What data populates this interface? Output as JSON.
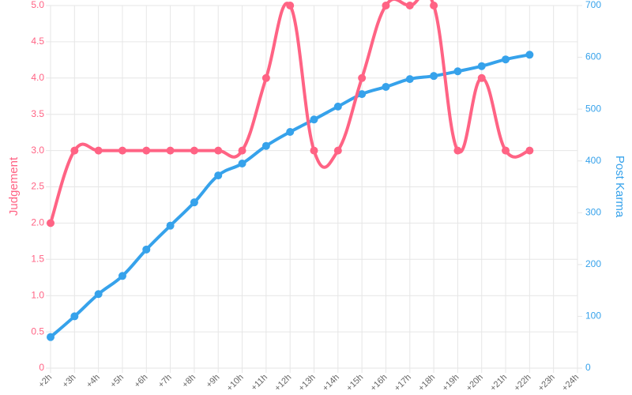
{
  "chart_data": {
    "type": "line",
    "categories": [
      "+2h",
      "+3h",
      "+4h",
      "+5h",
      "+6h",
      "+7h",
      "+8h",
      "+9h",
      "+10h",
      "+11h",
      "+12h",
      "+13h",
      "+14h",
      "+15h",
      "+16h",
      "+17h",
      "+18h",
      "+19h",
      "+20h",
      "+21h",
      "+22h",
      "+23h",
      "+24h"
    ],
    "series": [
      {
        "name": "Judgement",
        "color": "#ff6384",
        "axis": "y",
        "values": [
          2,
          3,
          3,
          3,
          3,
          3,
          3,
          3,
          3,
          4,
          5,
          3,
          3,
          4,
          5,
          5,
          5,
          3,
          4,
          3,
          3,
          null,
          null
        ]
      },
      {
        "name": "Post Karma",
        "color": "#36a2eb",
        "axis": "y2",
        "values": [
          60,
          100,
          143,
          178,
          229,
          275,
          320,
          372,
          395,
          429,
          456,
          480,
          505,
          529,
          543,
          558,
          564,
          573,
          583,
          596,
          605,
          null,
          null
        ]
      }
    ],
    "ylabel": "Judgement",
    "y2label": "Post Karma",
    "ylim": [
      0,
      5
    ],
    "yticks": [
      0,
      0.5,
      {
        "value": 1,
        "label": "1.0"
      },
      1.5,
      {
        "value": 2,
        "label": "2.0"
      },
      2.5,
      {
        "value": 3,
        "label": "3.0"
      },
      3.5,
      {
        "value": 4,
        "label": "4.0"
      },
      4.5,
      {
        "value": 5,
        "label": "5.0"
      }
    ],
    "y2lim": [
      0,
      700
    ],
    "y2ticks": [
      0,
      100,
      200,
      300,
      400,
      500,
      600,
      700
    ],
    "grid": true
  }
}
